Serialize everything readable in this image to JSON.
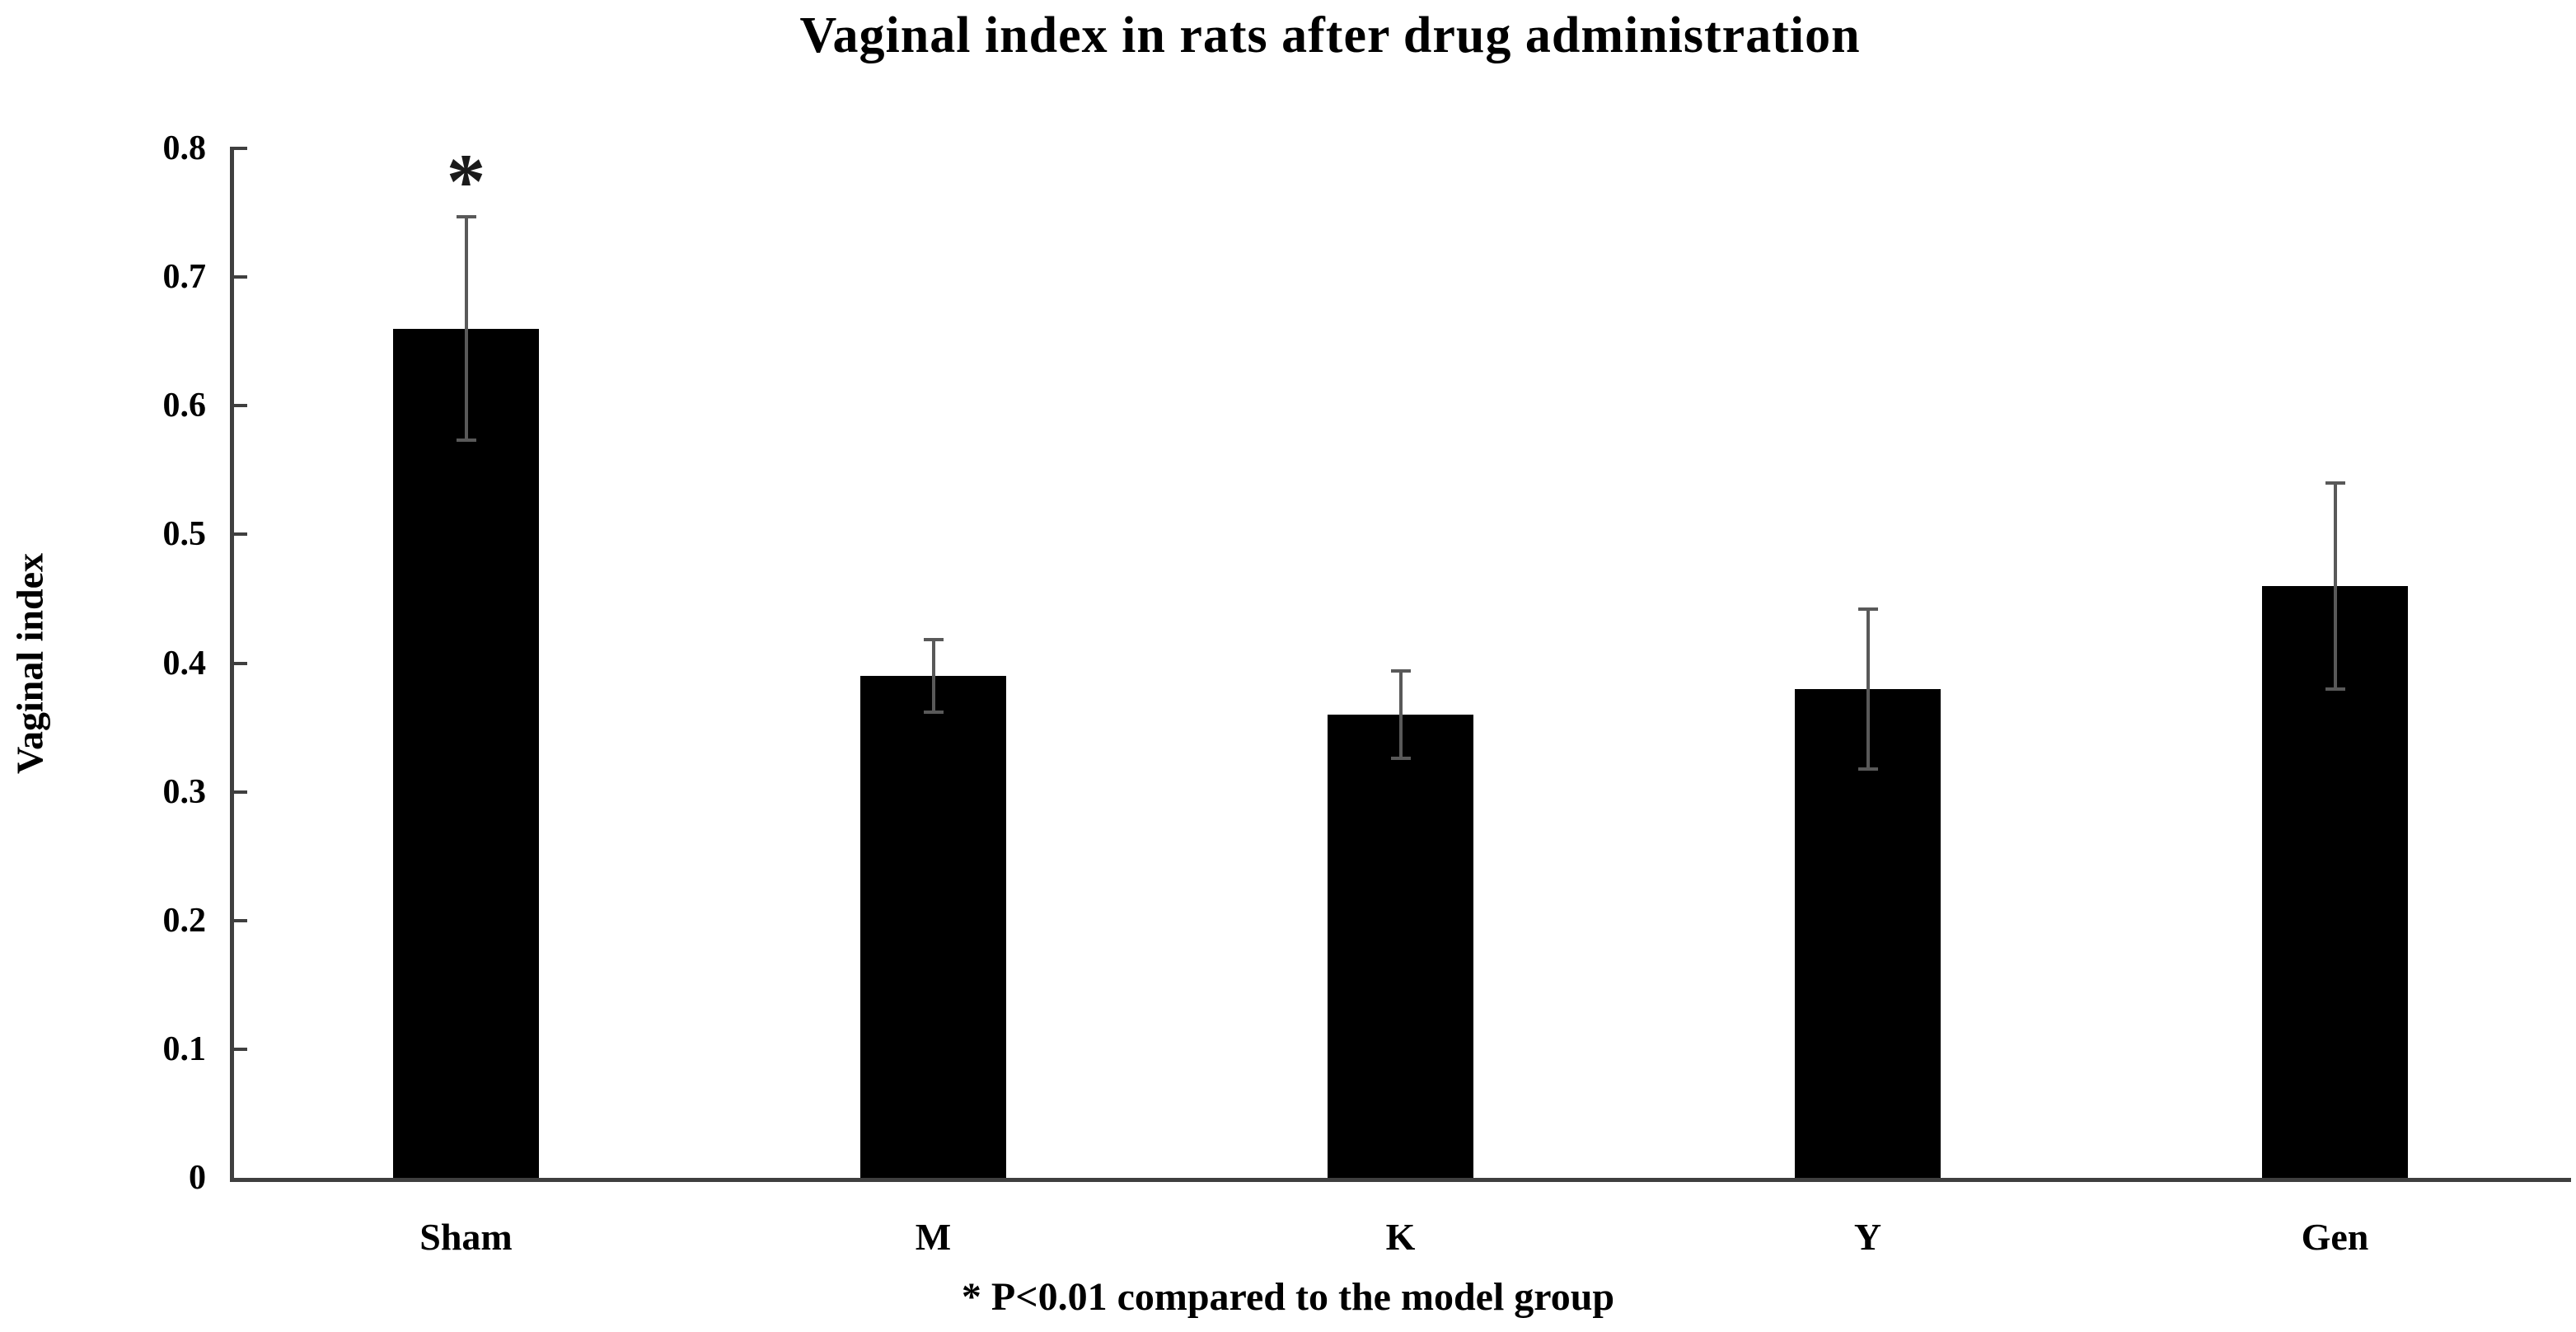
{
  "chart_data": {
    "type": "bar",
    "title": "Vaginal index in rats after drug administration",
    "ylabel": "Vaginal index",
    "xlabel": "",
    "footnote": "* P<0.01 compared to the model group",
    "categories": [
      "Sham",
      "M",
      "K",
      "Y",
      "Gen"
    ],
    "values": [
      0.66,
      0.39,
      0.36,
      0.38,
      0.46
    ],
    "errors": [
      0.087,
      0.028,
      0.034,
      0.062,
      0.08
    ],
    "annotations": [
      {
        "category_index": 0,
        "symbol": "*",
        "meaning": "P<0.01 compared to the model group"
      }
    ],
    "ylim": [
      0,
      0.8
    ],
    "ytick_step": 0.1,
    "ytick_labels": [
      "0",
      "0.1",
      "0.2",
      "0.3",
      "0.4",
      "0.5",
      "0.6",
      "0.7",
      "0.8"
    ],
    "grid": false,
    "legend_position": "none",
    "bar_color": "#000000",
    "error_bar_color": "#595959",
    "axis_color": "#3f3f3f",
    "text_color": "#000000"
  }
}
